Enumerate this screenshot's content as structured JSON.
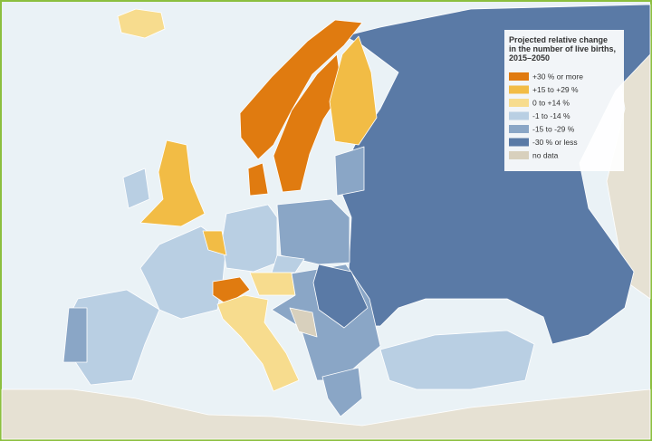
{
  "legend": {
    "title": [
      "Projected relative change",
      "in the number of live births,",
      "2015–2050"
    ],
    "items": [
      {
        "label": "+30 % or more",
        "color": "#e07b10"
      },
      {
        "label": "+15 to +29 %",
        "color": "#f2bc45"
      },
      {
        "label": "0 to +14 %",
        "color": "#f7dc8e"
      },
      {
        "label": "-1 to -14 %",
        "color": "#b9cfe3"
      },
      {
        "label": "-15 to -29 %",
        "color": "#8aa6c6"
      },
      {
        "label": "-30 % or less",
        "color": "#5a7aa6"
      },
      {
        "label": "no data",
        "color": "#d8d0bd"
      }
    ]
  }
}
